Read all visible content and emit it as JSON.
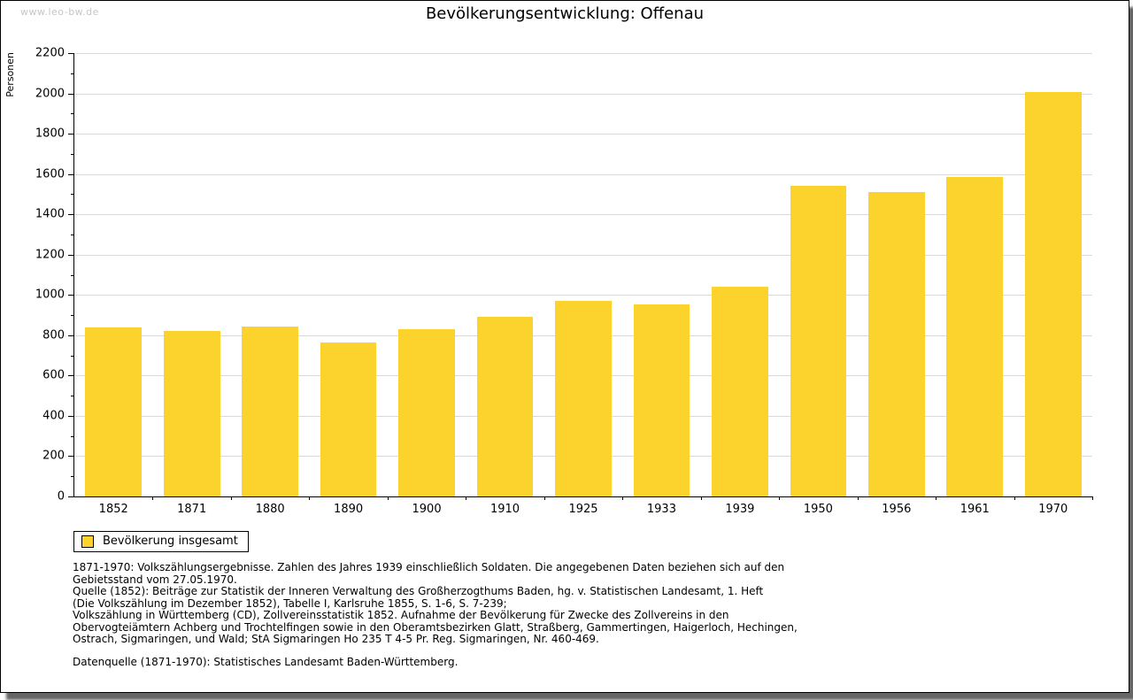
{
  "page": {
    "watermark": "www.leo-bw.de",
    "title": "Bevölkerungsentwicklung: Offenau"
  },
  "chart_data": {
    "type": "bar",
    "title": "Bevölkerungsentwicklung: Offenau",
    "xlabel": "",
    "ylabel": "Personen",
    "categories": [
      "1852",
      "1871",
      "1880",
      "1890",
      "1900",
      "1910",
      "1925",
      "1933",
      "1939",
      "1950",
      "1956",
      "1961",
      "1970"
    ],
    "values": [
      840,
      820,
      845,
      765,
      830,
      890,
      970,
      955,
      1040,
      1540,
      1510,
      1585,
      2005
    ],
    "ylim": [
      0,
      2200
    ],
    "ytick_step": 200,
    "minor_tick_step": 100,
    "grid": true,
    "bar_color": "#fcd32d",
    "legend": {
      "label": "Bevölkerung insgesamt",
      "position": "bottom-left"
    }
  },
  "footnotes": {
    "lines": [
      "1871-1970: Volkszählungsergebnisse. Zahlen des Jahres 1939 einschließlich Soldaten. Die angegebenen Daten beziehen sich auf den",
      "Gebietsstand vom 27.05.1970.",
      "Quelle (1852): Beiträge zur Statistik der Inneren Verwaltung des Großherzogthums Baden, hg. v. Statistischen Landesamt, 1. Heft",
      "(Die Volkszählung im Dezember 1852), Tabelle I, Karlsruhe 1855, S. 1-6, S. 7-239;",
      "Volkszählung in Württemberg (CD), Zollvereinsstatistik 1852. Aufnahme der Bevölkerung für Zwecke des Zollvereins in den",
      "Obervogteiämtern Achberg und Trochtelfingen sowie in den Oberamtsbezirken Glatt, Straßberg, Gammertingen, Haigerloch, Hechingen,",
      "Ostrach, Sigmaringen, und Wald; StA Sigmaringen Ho 235 T 4-5 Pr. Reg. Sigmaringen, Nr. 460-469."
    ],
    "datasource": "Datenquelle (1871-1970): Statistisches Landesamt Baden-Württemberg."
  },
  "colors": {
    "bar": "#fcd32d",
    "grid": "#d9d9d9",
    "watermark": "#c6c6c6",
    "frame_border": "#000000",
    "shadow": "#4d4d4d"
  }
}
